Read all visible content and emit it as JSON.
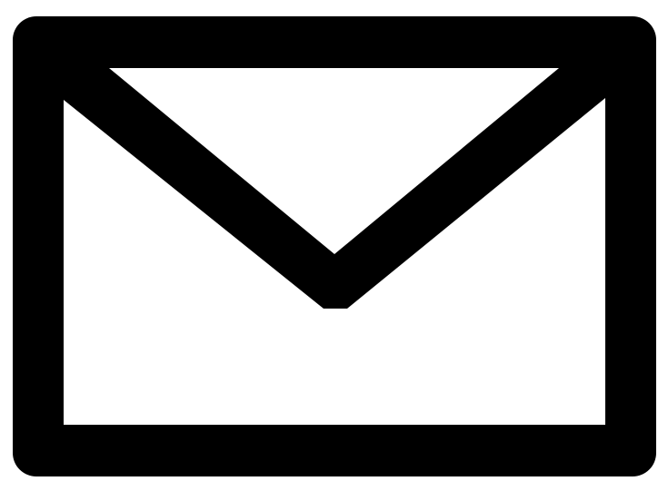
{
  "icon": {
    "name": "envelope-icon",
    "stroke_color": "#000000",
    "fill_color": "#ffffff"
  }
}
